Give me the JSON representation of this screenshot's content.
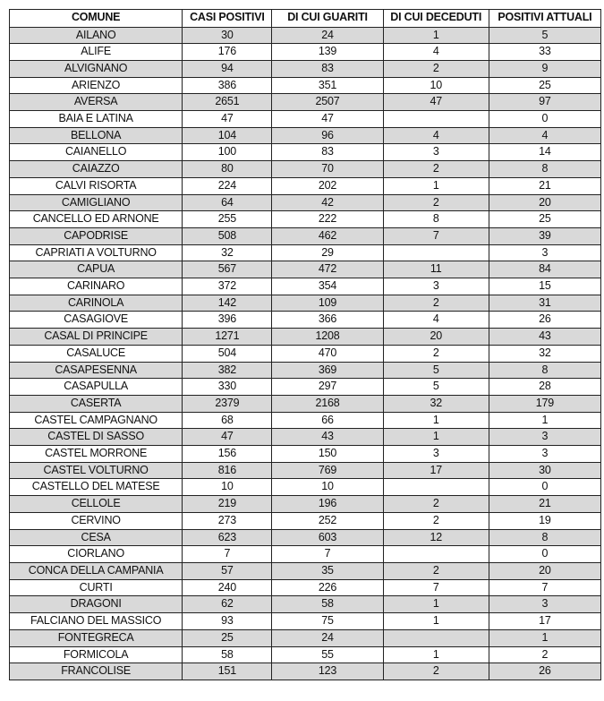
{
  "table": {
    "headers": [
      "COMUNE",
      "CASI POSITIVI",
      "DI CUI GUARITI",
      "DI CUI DECEDUTI",
      "POSITIVI ATTUALI"
    ],
    "row_shading": "#d9d9d9",
    "rows": [
      [
        "AILANO",
        "30",
        "24",
        "1",
        "5"
      ],
      [
        "ALIFE",
        "176",
        "139",
        "4",
        "33"
      ],
      [
        "ALVIGNANO",
        "94",
        "83",
        "2",
        "9"
      ],
      [
        "ARIENZO",
        "386",
        "351",
        "10",
        "25"
      ],
      [
        "AVERSA",
        "2651",
        "2507",
        "47",
        "97"
      ],
      [
        "BAIA E LATINA",
        "47",
        "47",
        "",
        "0"
      ],
      [
        "BELLONA",
        "104",
        "96",
        "4",
        "4"
      ],
      [
        "CAIANELLO",
        "100",
        "83",
        "3",
        "14"
      ],
      [
        "CAIAZZO",
        "80",
        "70",
        "2",
        "8"
      ],
      [
        "CALVI RISORTA",
        "224",
        "202",
        "1",
        "21"
      ],
      [
        "CAMIGLIANO",
        "64",
        "42",
        "2",
        "20"
      ],
      [
        "CANCELLO ED ARNONE",
        "255",
        "222",
        "8",
        "25"
      ],
      [
        "CAPODRISE",
        "508",
        "462",
        "7",
        "39"
      ],
      [
        "CAPRIATI A VOLTURNO",
        "32",
        "29",
        "",
        "3"
      ],
      [
        "CAPUA",
        "567",
        "472",
        "11",
        "84"
      ],
      [
        "CARINARO",
        "372",
        "354",
        "3",
        "15"
      ],
      [
        "CARINOLA",
        "142",
        "109",
        "2",
        "31"
      ],
      [
        "CASAGIOVE",
        "396",
        "366",
        "4",
        "26"
      ],
      [
        "CASAL DI PRINCIPE",
        "1271",
        "1208",
        "20",
        "43"
      ],
      [
        "CASALUCE",
        "504",
        "470",
        "2",
        "32"
      ],
      [
        "CASAPESENNA",
        "382",
        "369",
        "5",
        "8"
      ],
      [
        "CASAPULLA",
        "330",
        "297",
        "5",
        "28"
      ],
      [
        "CASERTA",
        "2379",
        "2168",
        "32",
        "179"
      ],
      [
        "CASTEL CAMPAGNANO",
        "68",
        "66",
        "1",
        "1"
      ],
      [
        "CASTEL DI SASSO",
        "47",
        "43",
        "1",
        "3"
      ],
      [
        "CASTEL MORRONE",
        "156",
        "150",
        "3",
        "3"
      ],
      [
        "CASTEL VOLTURNO",
        "816",
        "769",
        "17",
        "30"
      ],
      [
        "CASTELLO DEL MATESE",
        "10",
        "10",
        "",
        "0"
      ],
      [
        "CELLOLE",
        "219",
        "196",
        "2",
        "21"
      ],
      [
        "CERVINO",
        "273",
        "252",
        "2",
        "19"
      ],
      [
        "CESA",
        "623",
        "603",
        "12",
        "8"
      ],
      [
        "CIORLANO",
        "7",
        "7",
        "",
        "0"
      ],
      [
        "CONCA DELLA CAMPANIA",
        "57",
        "35",
        "2",
        "20"
      ],
      [
        "CURTI",
        "240",
        "226",
        "7",
        "7"
      ],
      [
        "DRAGONI",
        "62",
        "58",
        "1",
        "3"
      ],
      [
        "FALCIANO DEL MASSICO",
        "93",
        "75",
        "1",
        "17"
      ],
      [
        "FONTEGRECA",
        "25",
        "24",
        "",
        "1"
      ],
      [
        "FORMICOLA",
        "58",
        "55",
        "1",
        "2"
      ],
      [
        "FRANCOLISE",
        "151",
        "123",
        "2",
        "26"
      ]
    ]
  }
}
